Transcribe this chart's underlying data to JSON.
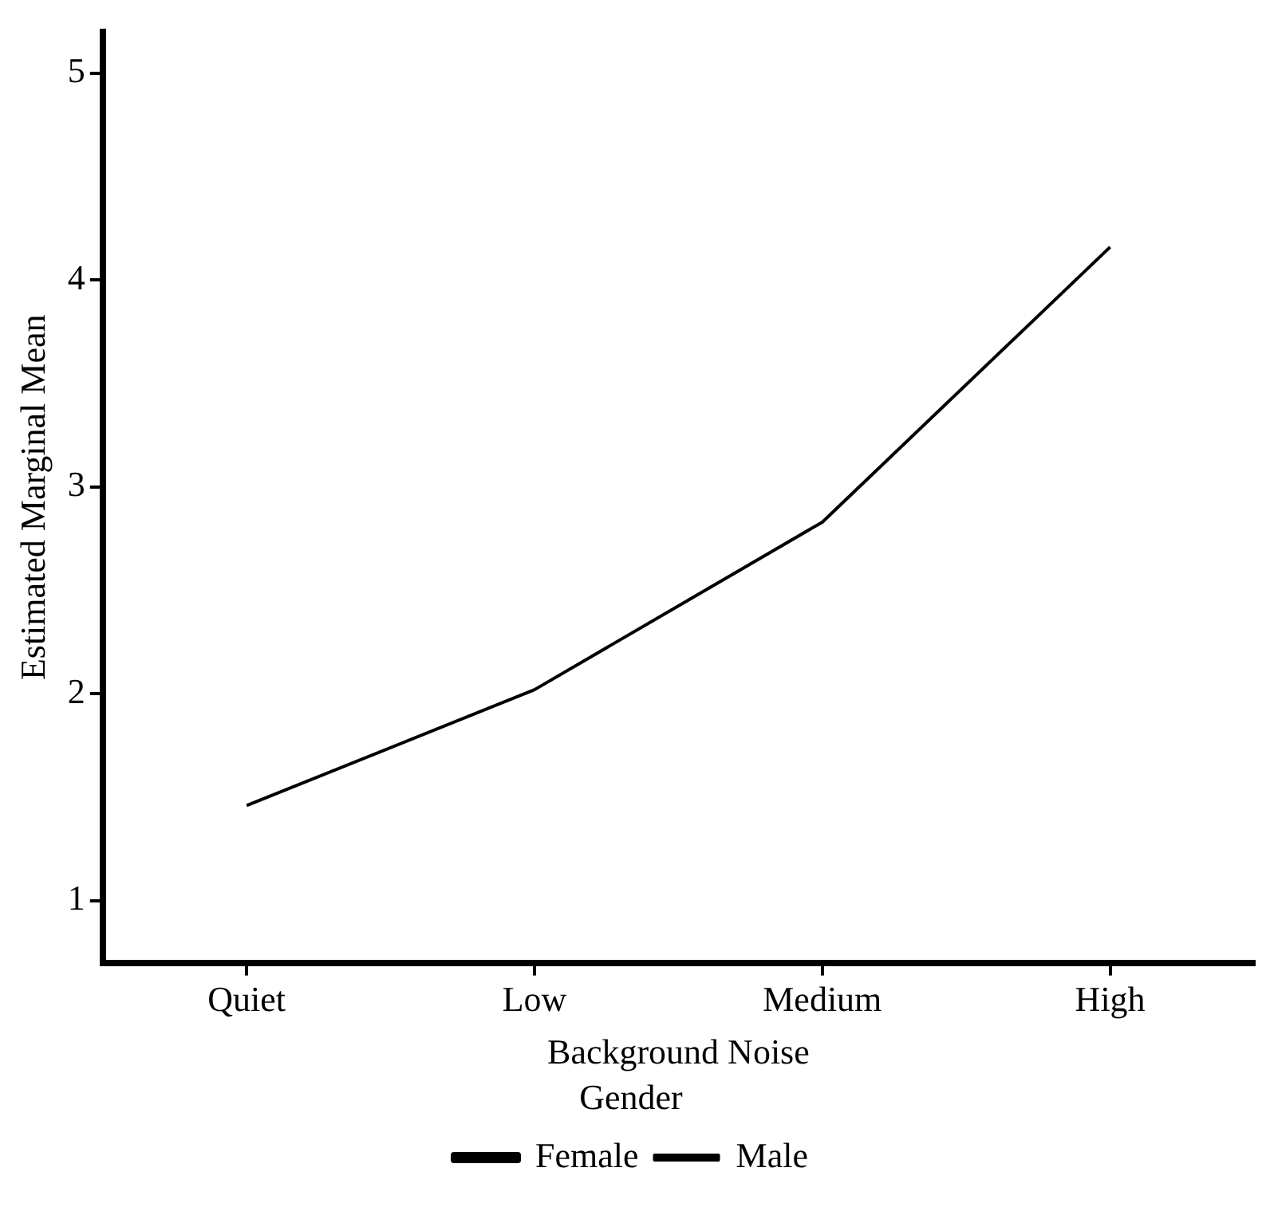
{
  "chart_data": {
    "type": "line",
    "xlabel": "Background Noise",
    "ylabel": "Estimated Marginal Mean",
    "legend_title": "Gender",
    "categories": [
      "Quiet",
      "Low",
      "Medium",
      "High"
    ],
    "series": [
      {
        "name": "Female",
        "color": "#000000",
        "values": [
          null,
          null,
          null,
          null
        ]
      },
      {
        "name": "Male",
        "color": "#000000",
        "values": [
          1.46,
          2.02,
          2.83,
          4.16
        ]
      }
    ],
    "ylim": [
      0.7,
      5.2
    ],
    "yticks": [
      1,
      2,
      3,
      4,
      5
    ],
    "grid": false,
    "legend": "bottom",
    "marker": "none",
    "line_style": "solid"
  }
}
